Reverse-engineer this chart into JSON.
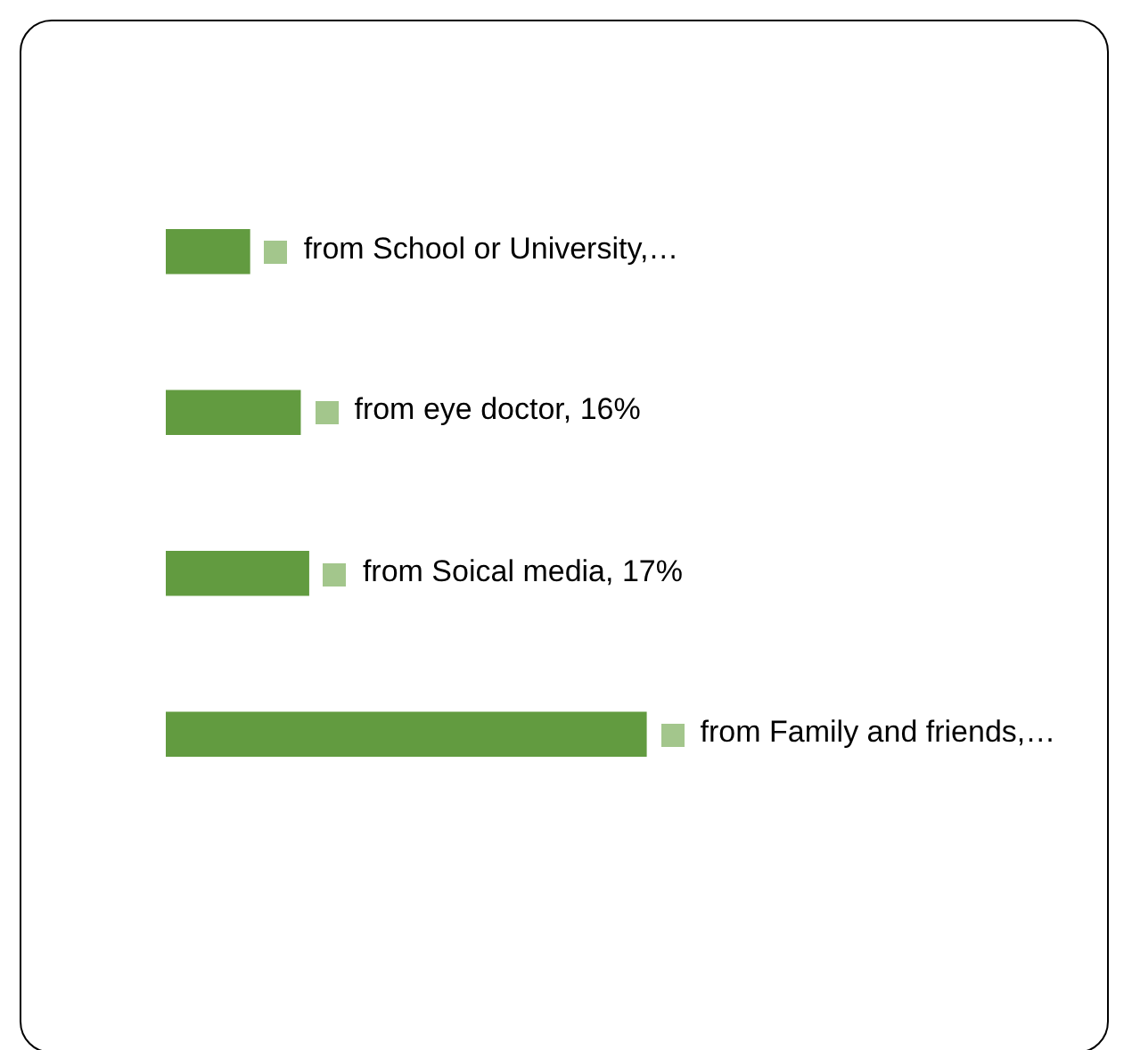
{
  "chart_data": {
    "type": "bar",
    "orientation": "horizontal",
    "categories": [
      null,
      null,
      null,
      null
    ],
    "values": [
      10,
      16,
      17,
      57
    ],
    "value_labels": [
      "from School or University,…",
      "from eye doctor, 16%",
      "from Soical media, 17%",
      "from Family and friends,…"
    ],
    "color": "#629b40",
    "legend": false
  }
}
